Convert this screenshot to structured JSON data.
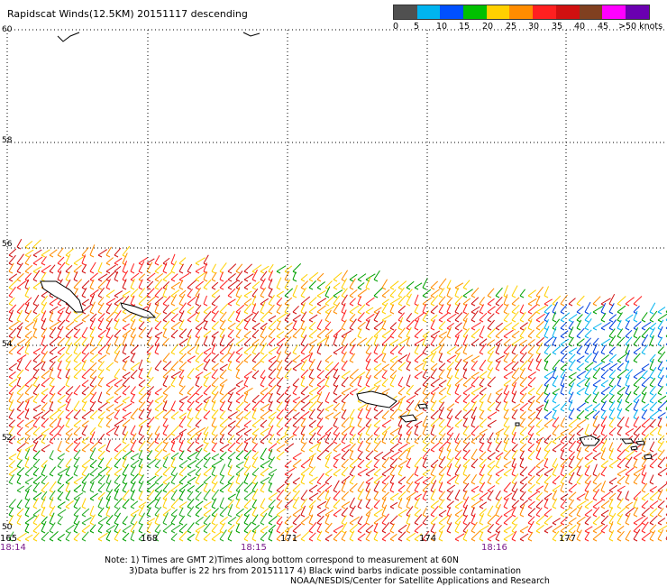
{
  "title": "Rapidscat Winds(12.5KM) 20151117 descending",
  "legend": {
    "labels": [
      "0",
      "5",
      "10",
      "15",
      "20",
      "25",
      "30",
      "35",
      "40",
      "45",
      ">50 knots"
    ],
    "colors": [
      "#505050",
      "#00b4f0",
      "#0050ff",
      "#00c000",
      "#ffd000",
      "#ff8c00",
      "#ff2020",
      "#d01010",
      "#804020",
      "#ff00ff",
      "#6a00b0"
    ]
  },
  "latitude_labels": [
    "60",
    "58",
    "56",
    "54",
    "52",
    "50"
  ],
  "longitude_labels": [
    "165",
    "168",
    "171",
    "174",
    "177"
  ],
  "time_labels": [
    "18:14",
    "18:15",
    "18:16"
  ],
  "notes": [
    "Note: 1) Times are GMT 2)Times along bottom correspond to measurement at 60N",
    "3)Data buffer is 22 hrs from 20151117 4) Black wind barbs indicate possible contamination",
    "NOAA/NESDIS/Center for Satellite Applications and Research"
  ]
}
